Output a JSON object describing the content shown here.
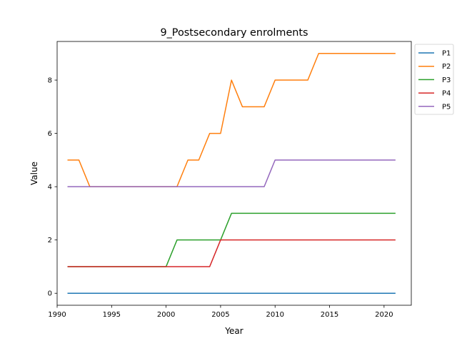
{
  "chart_data": {
    "type": "line",
    "title": "9_Postsecondary enrolments",
    "xlabel": "Year",
    "ylabel": "Value",
    "xlim": [
      1990,
      2022.5
    ],
    "ylim": [
      -0.45,
      9.45
    ],
    "x_ticks": [
      1990,
      1995,
      2000,
      2005,
      2010,
      2015,
      2020
    ],
    "y_ticks": [
      0,
      2,
      4,
      6,
      8
    ],
    "grid": false,
    "legend_position": "outside-right",
    "x": [
      1991,
      1992,
      1993,
      1994,
      1995,
      1996,
      1997,
      1998,
      1999,
      2000,
      2001,
      2002,
      2003,
      2004,
      2005,
      2006,
      2007,
      2008,
      2009,
      2010,
      2011,
      2012,
      2013,
      2014,
      2015,
      2016,
      2017,
      2018,
      2019,
      2020,
      2021
    ],
    "series": [
      {
        "name": "P1",
        "color": "#1f77b4",
        "values": [
          0,
          0,
          0,
          0,
          0,
          0,
          0,
          0,
          0,
          0,
          0,
          0,
          0,
          0,
          0,
          0,
          0,
          0,
          0,
          0,
          0,
          0,
          0,
          0,
          0,
          0,
          0,
          0,
          0,
          0,
          0
        ]
      },
      {
        "name": "P2",
        "color": "#ff7f0e",
        "values": [
          5,
          5,
          4,
          4,
          4,
          4,
          4,
          4,
          4,
          4,
          4,
          5,
          5,
          6,
          6,
          8,
          7,
          7,
          7,
          8,
          8,
          8,
          8,
          9,
          9,
          9,
          9,
          9,
          9,
          9,
          9
        ]
      },
      {
        "name": "P3",
        "color": "#2ca02c",
        "values": [
          1,
          1,
          1,
          1,
          1,
          1,
          1,
          1,
          1,
          1,
          2,
          2,
          2,
          2,
          2,
          3,
          3,
          3,
          3,
          3,
          3,
          3,
          3,
          3,
          3,
          3,
          3,
          3,
          3,
          3,
          3
        ]
      },
      {
        "name": "P4",
        "color": "#d62728",
        "values": [
          1,
          1,
          1,
          1,
          1,
          1,
          1,
          1,
          1,
          1,
          1,
          1,
          1,
          1,
          2,
          2,
          2,
          2,
          2,
          2,
          2,
          2,
          2,
          2,
          2,
          2,
          2,
          2,
          2,
          2,
          2
        ]
      },
      {
        "name": "P5",
        "color": "#9467bd",
        "values": [
          4,
          4,
          4,
          4,
          4,
          4,
          4,
          4,
          4,
          4,
          4,
          4,
          4,
          4,
          4,
          4,
          4,
          4,
          4,
          5,
          5,
          5,
          5,
          5,
          5,
          5,
          5,
          5,
          5,
          5,
          5
        ]
      }
    ]
  }
}
